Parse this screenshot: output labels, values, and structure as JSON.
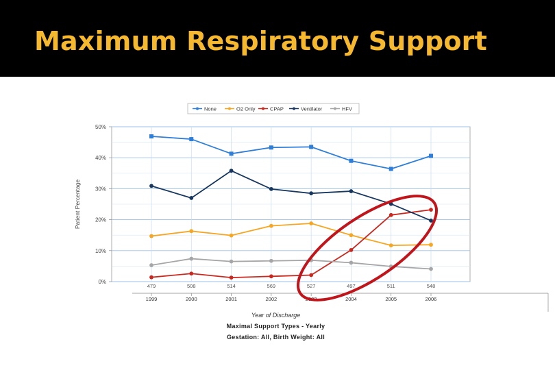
{
  "slide": {
    "title": "Maximum Respiratory Support"
  },
  "chart_data": {
    "type": "line",
    "xlabel": "Year of Discharge",
    "ylabel": "Patient Percentage",
    "subtitle_lines": [
      "Maximal Support Types - Yearly",
      "Gestation: All, Birth Weight: All"
    ],
    "categories": [
      "1999",
      "2000",
      "2001",
      "2002",
      "2003",
      "2004",
      "2005",
      "2006"
    ],
    "counts": [
      "479",
      "508",
      "514",
      "569",
      "527",
      "497",
      "511",
      "548"
    ],
    "yticks": [
      "0%",
      "10%",
      "20%",
      "30%",
      "40%",
      "50%"
    ],
    "ylim": [
      0,
      50
    ],
    "grid": true,
    "legend_position": "top-center",
    "series": [
      {
        "name": "None",
        "color": "#2f7ed8",
        "marker": "square",
        "values": [
          46.9,
          46.0,
          41.3,
          43.3,
          43.5,
          39.0,
          36.4,
          40.6
        ]
      },
      {
        "name": "O2 Only",
        "color": "#f5a623",
        "marker": "circle",
        "values": [
          14.7,
          16.3,
          14.9,
          18.0,
          18.8,
          15.0,
          11.7,
          11.9
        ]
      },
      {
        "name": "CPAP",
        "color": "#c9281e",
        "marker": "circle",
        "values": [
          1.4,
          2.6,
          1.3,
          1.7,
          2.1,
          10.2,
          21.5,
          23.2
        ]
      },
      {
        "name": "Ventilator",
        "color": "#17375e",
        "marker": "circle",
        "values": [
          30.9,
          27.0,
          35.8,
          29.9,
          28.5,
          29.2,
          25.1,
          19.7
        ]
      },
      {
        "name": "HFV",
        "color": "#a6a6a6",
        "marker": "circle",
        "values": [
          5.3,
          7.4,
          6.5,
          6.7,
          6.9,
          6.1,
          4.9,
          4.1
        ]
      }
    ],
    "annotations": [
      {
        "type": "ellipse",
        "color": "#c0161b",
        "around_categories": [
          "2003",
          "2006"
        ],
        "around_series": [
          "CPAP"
        ]
      }
    ]
  }
}
